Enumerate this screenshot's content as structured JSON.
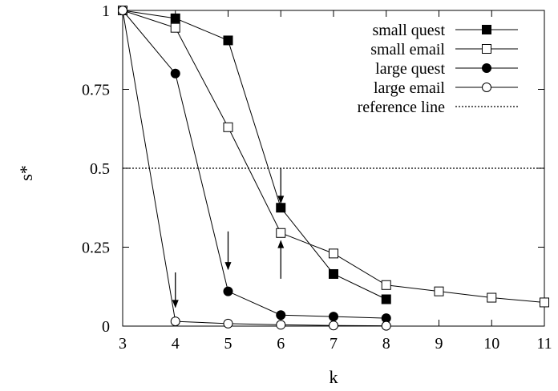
{
  "chart_data": {
    "type": "line",
    "xlabel": "k",
    "ylabel": "s*",
    "xlim": [
      3,
      11
    ],
    "ylim": [
      0,
      1
    ],
    "xticks": [
      "3",
      "4",
      "5",
      "6",
      "7",
      "8",
      "9",
      "10",
      "11"
    ],
    "yticks": [
      "0",
      "0.25",
      "0.5",
      "0.75",
      "1"
    ],
    "legend_position": "top-right",
    "series": [
      {
        "name": "small quest",
        "marker": "filled-square",
        "x": [
          3,
          4,
          5,
          6,
          7,
          8
        ],
        "y": [
          1.0,
          0.975,
          0.905,
          0.375,
          0.165,
          0.085
        ]
      },
      {
        "name": "small email",
        "marker": "open-square",
        "x": [
          3,
          4,
          5,
          6,
          7,
          8,
          9,
          10,
          11
        ],
        "y": [
          1.0,
          0.945,
          0.63,
          0.295,
          0.23,
          0.13,
          0.11,
          0.09,
          0.075
        ]
      },
      {
        "name": "large quest",
        "marker": "filled-circle",
        "x": [
          3,
          4,
          5,
          6,
          7,
          8
        ],
        "y": [
          1.0,
          0.8,
          0.11,
          0.035,
          0.03,
          0.025
        ]
      },
      {
        "name": "large email",
        "marker": "open-circle",
        "x": [
          3,
          4,
          5,
          6,
          7,
          8
        ],
        "y": [
          1.0,
          0.015,
          0.008,
          0.004,
          0.002,
          0.001
        ]
      }
    ],
    "reference_line": {
      "name": "reference line",
      "y": 0.5,
      "style": "dotted"
    },
    "annotations": [
      {
        "type": "arrow-down",
        "x": 4,
        "y_from": 0.17,
        "y_to": 0.06
      },
      {
        "type": "arrow-down",
        "x": 5,
        "y_from": 0.3,
        "y_to": 0.18
      },
      {
        "type": "arrow-down",
        "x": 6,
        "y_from": 0.5,
        "y_to": 0.39
      },
      {
        "type": "arrow-up",
        "x": 6,
        "y_from": 0.15,
        "y_to": 0.27
      }
    ]
  }
}
